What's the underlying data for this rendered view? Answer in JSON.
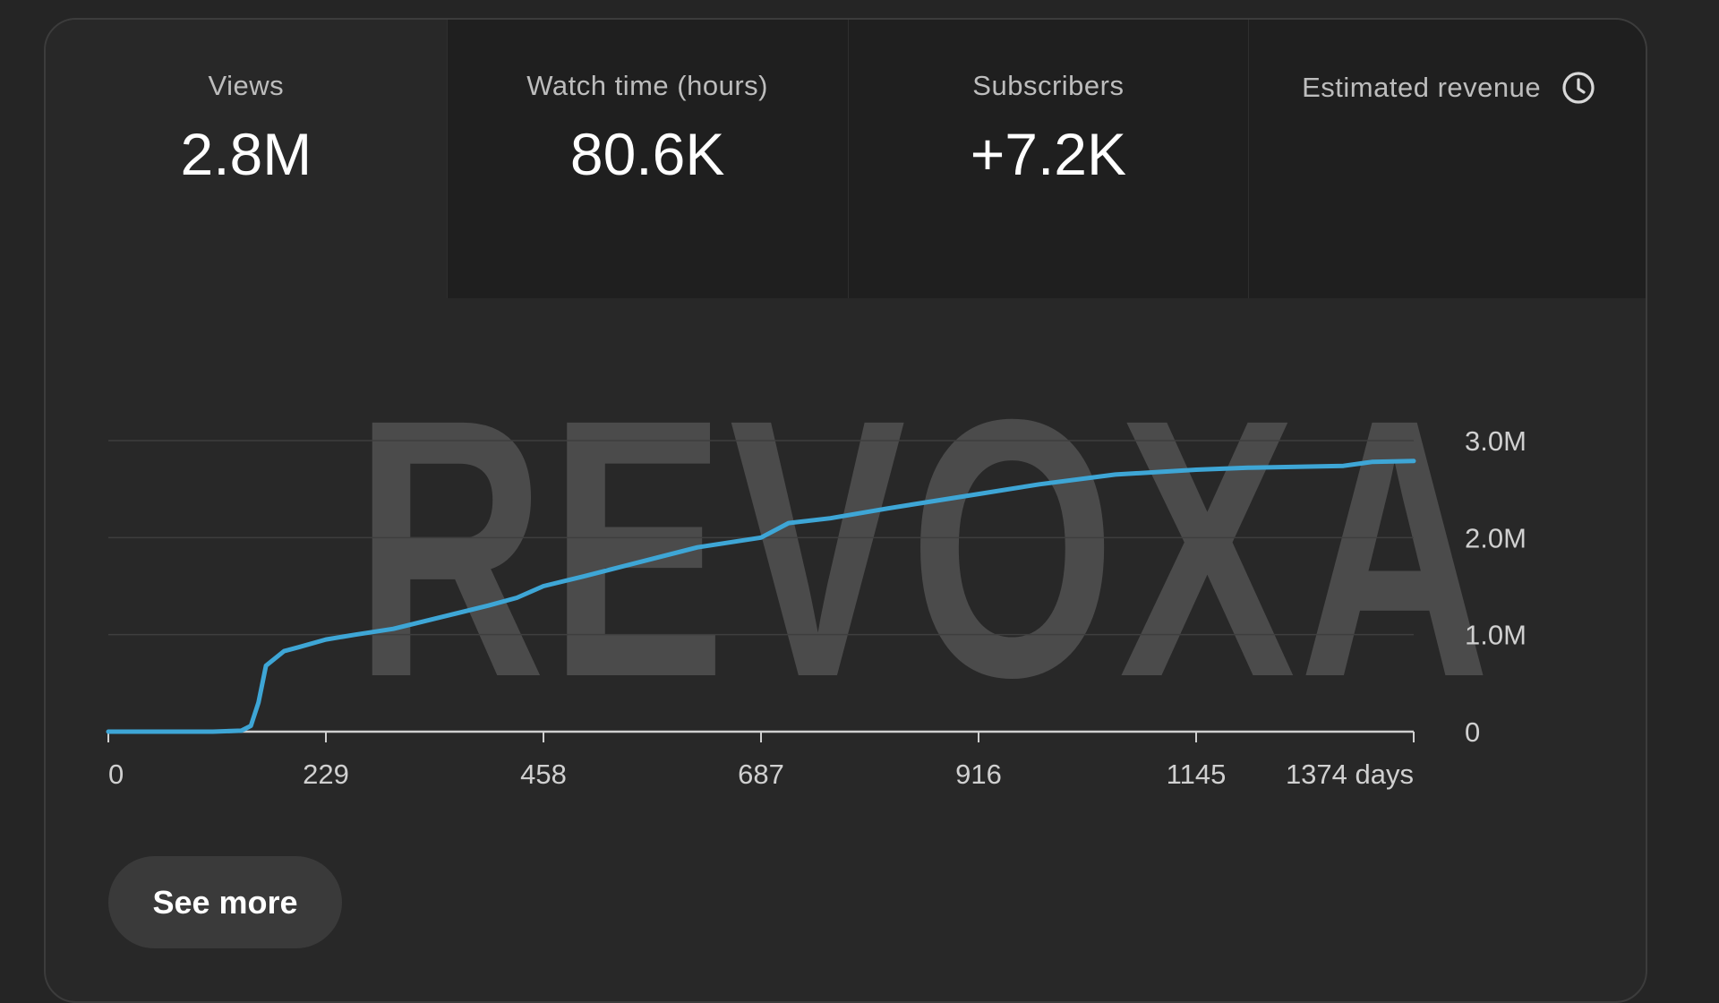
{
  "metrics": [
    {
      "label": "Views",
      "value": "2.8M"
    },
    {
      "label": "Watch time (hours)",
      "value": "80.6K"
    },
    {
      "label": "Subscribers",
      "value": "+7.2K"
    },
    {
      "label": "Estimated revenue",
      "value": ""
    }
  ],
  "watermark": "REVOXA",
  "see_more_label": "See more",
  "icons": {
    "revenue_status": "clock-icon"
  },
  "colors": {
    "line": "#3ea6d6",
    "grid": "#3e3e3e",
    "axis": "#d0d0d0",
    "tick_text": "#d0d0d0"
  },
  "chart_data": {
    "type": "line",
    "x_ticks": [
      0,
      229,
      458,
      687,
      916,
      1145,
      1374
    ],
    "x_tick_labels": [
      "0",
      "229",
      "458",
      "687",
      "916",
      "1145",
      "1374 days"
    ],
    "y_ticks": [
      0,
      1000000,
      2000000,
      3000000
    ],
    "y_tick_labels": [
      "0",
      "1.0M",
      "2.0M",
      "3.0M"
    ],
    "xlim": [
      0,
      1374
    ],
    "ylim": [
      0,
      3000000
    ],
    "y_axis_side": "right",
    "grid": true,
    "series": [
      {
        "values": [
          [
            0,
            0
          ],
          [
            110,
            0
          ],
          [
            140,
            10000
          ],
          [
            150,
            60000
          ],
          [
            158,
            300000
          ],
          [
            166,
            680000
          ],
          [
            185,
            830000
          ],
          [
            200,
            870000
          ],
          [
            229,
            950000
          ],
          [
            260,
            1000000
          ],
          [
            300,
            1060000
          ],
          [
            350,
            1180000
          ],
          [
            400,
            1300000
          ],
          [
            430,
            1380000
          ],
          [
            458,
            1500000
          ],
          [
            500,
            1600000
          ],
          [
            560,
            1750000
          ],
          [
            620,
            1900000
          ],
          [
            687,
            2000000
          ],
          [
            716,
            2150000
          ],
          [
            760,
            2200000
          ],
          [
            820,
            2300000
          ],
          [
            916,
            2450000
          ],
          [
            980,
            2550000
          ],
          [
            1060,
            2650000
          ],
          [
            1145,
            2700000
          ],
          [
            1200,
            2720000
          ],
          [
            1300,
            2740000
          ],
          [
            1330,
            2780000
          ],
          [
            1374,
            2790000
          ]
        ]
      }
    ]
  }
}
